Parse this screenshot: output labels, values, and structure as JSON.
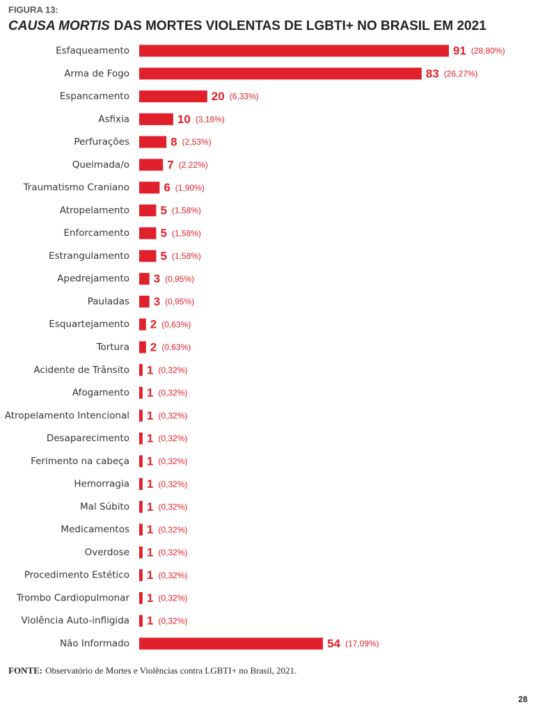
{
  "figure_label": "FIGURA 13:",
  "chart_data": {
    "type": "hbar",
    "title_emphasis": "CAUSA MORTIS",
    "title": "DAS MORTES VIOLENTAS DE LGBTI+ NO BRASIL EM 2021",
    "color": "#e0202a",
    "categories": [
      "Esfaqueamento",
      "Arma de Fogo",
      "Espancamento",
      "Asfixia",
      "Perfurações",
      "Queimada/o",
      "Traumatismo Craniano",
      "Atropelamento",
      "Enforcamento",
      "Estrangulamento",
      "Apedrejamento",
      "Pauladas",
      "Esquartejamento",
      "Tortura",
      "Acidente de Trânsito",
      "Afogamento",
      "Atropelamento Intencional",
      "Desaparecimento",
      "Ferimento na cabeça",
      "Hemorragia",
      "Mal Súbito",
      "Medicamentos",
      "Overdose",
      "Procedimento Estético",
      "Trombo Cardiopulmonar",
      "Violência Auto-infligida",
      "Não Informado"
    ],
    "values": [
      91,
      83,
      20,
      10,
      8,
      7,
      6,
      5,
      5,
      5,
      3,
      3,
      2,
      2,
      1,
      1,
      1,
      1,
      1,
      1,
      1,
      1,
      1,
      1,
      1,
      1,
      54
    ],
    "percent_labels": [
      "(28,80%)",
      "(26,27%)",
      "(6,33%)",
      "(3,16%)",
      "(2,53%)",
      "(2,22%)",
      "(1,90%)",
      "(1,58%)",
      "(1,58%)",
      "(1,58%)",
      "(0,95%)",
      "(0,95%)",
      "(0,63%)",
      "(0,63%)",
      "(0,32%)",
      "(0,32%)",
      "(0,32%)",
      "(0,32%)",
      "(0,32%)",
      "(0,32%)",
      "(0,32%)",
      "(0,32%)",
      "(0,32%)",
      "(0,32%)",
      "(0,32%)",
      "(0,32%)",
      "(17,09%)"
    ]
  },
  "source_label": "FONTE:",
  "source": "Observatório de Mortes e Violências contra LGBTI+ no Brasil, 2021.",
  "page_number": 28
}
